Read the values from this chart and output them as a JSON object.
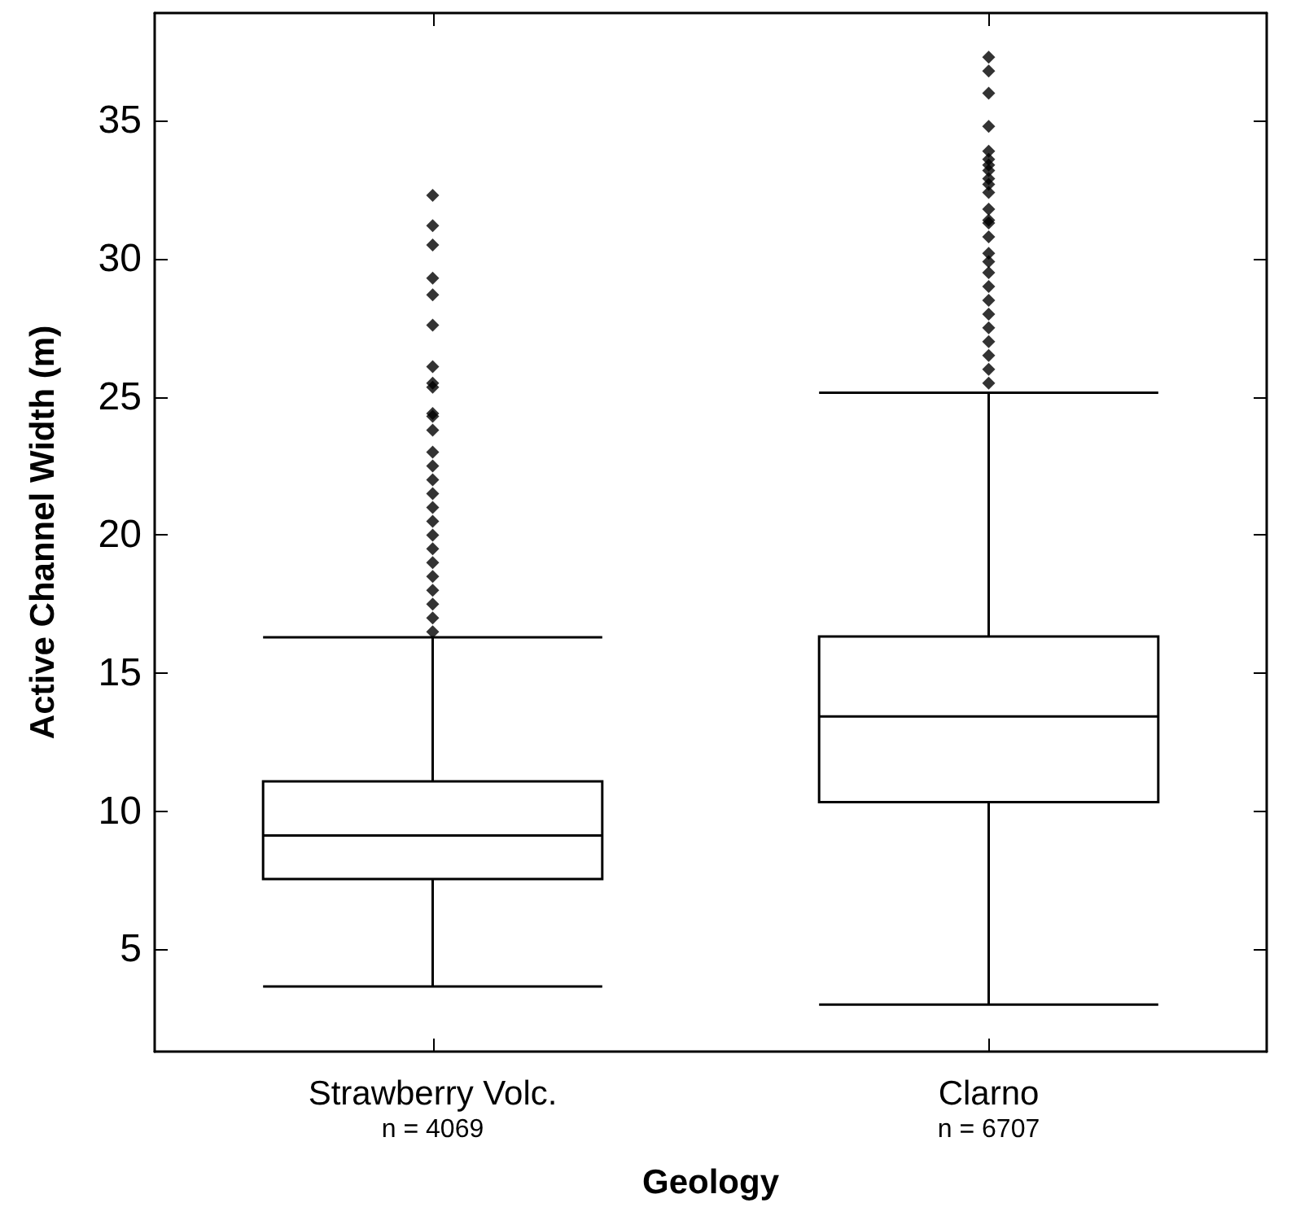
{
  "chart_data": {
    "type": "box",
    "xlabel": "Geology",
    "ylabel": "Active Channel Width (m)",
    "categories": [
      "Strawberry Volc.\nn = 4069",
      "Clarno\nn = 6707"
    ],
    "ylim": [
      1.3,
      38.9
    ],
    "yticks": [
      5,
      10,
      15,
      20,
      25,
      30,
      35
    ],
    "grid": false,
    "marker": "diamond",
    "series": [
      {
        "color": "#000000",
        "boxes": [
          {
            "low": 3.66,
            "q1": 7.55,
            "median": 9.12,
            "q3": 11.08,
            "high": 16.3,
            "outliers": [
              32.3,
              31.2,
              30.5,
              29.3,
              28.7,
              27.6,
              26.1,
              25.5,
              25.35,
              24.4,
              24.3,
              23.8,
              23.0,
              22.5,
              22.0,
              21.5,
              21.0,
              20.5,
              20.0,
              19.5,
              19.0,
              18.5,
              18.0,
              17.5,
              17.0,
              16.5
            ]
          },
          {
            "low": 3.0,
            "q1": 10.33,
            "median": 13.43,
            "q3": 16.33,
            "high": 25.15,
            "outliers": [
              37.3,
              36.8,
              36.0,
              34.8,
              33.9,
              33.6,
              33.4,
              33.2,
              32.9,
              32.7,
              32.4,
              31.8,
              31.4,
              31.3,
              30.8,
              30.2,
              29.9,
              29.5,
              29.0,
              28.5,
              28.0,
              27.5,
              27.0,
              26.5,
              26.0,
              25.5
            ]
          }
        ]
      }
    ]
  }
}
